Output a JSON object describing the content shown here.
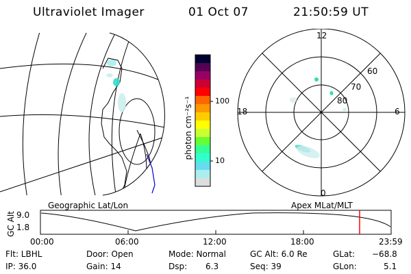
{
  "header": {
    "instrument": "Ultraviolet Imager",
    "date": "01 Oct 07",
    "time": "21:50:59 UT"
  },
  "colorbar": {
    "unit_label": "photon cm⁻²s⁻¹",
    "tick_100": "100",
    "tick_10": "10",
    "colors": [
      "#000033",
      "#550055",
      "#990066",
      "#cc0033",
      "#ff0000",
      "#ff6600",
      "#ff9900",
      "#ffcc00",
      "#ffff00",
      "#ccff33",
      "#66ff33",
      "#33ff99",
      "#33ffcc",
      "#66ddee",
      "#aaeeee",
      "#dddddd"
    ]
  },
  "left_panel": {
    "caption": "Geographic Lat/Lon"
  },
  "polar_panel": {
    "caption": "Apex MLat/MLT",
    "mlt_labels": {
      "top": "12",
      "left": "18",
      "right": "6",
      "bottom": "0"
    },
    "mlat_labels": [
      "60",
      "70",
      "80"
    ]
  },
  "altitude_plot": {
    "ylabel": "GC Alt",
    "yticks": [
      "9.0",
      "1.8"
    ],
    "xticks": [
      "00:00",
      "06:00",
      "12:00",
      "18:00",
      "23:59"
    ],
    "current_marker_color": "#ff0000"
  },
  "status": {
    "flt": "Flt: LBHL",
    "ip": "IP: 36.0",
    "door": "Door: Open",
    "gain": "Gain: 14",
    "mode": "Mode: Normal",
    "dsp_label": "Dsp:",
    "dsp_value": "6.3",
    "gc_alt": "GC Alt: 6.0 Re",
    "seq": "Seq: 39",
    "glat_label": "GLat:",
    "glat_value": "−68.8",
    "glon_label": "GLon:",
    "glon_value": "5.1"
  }
}
